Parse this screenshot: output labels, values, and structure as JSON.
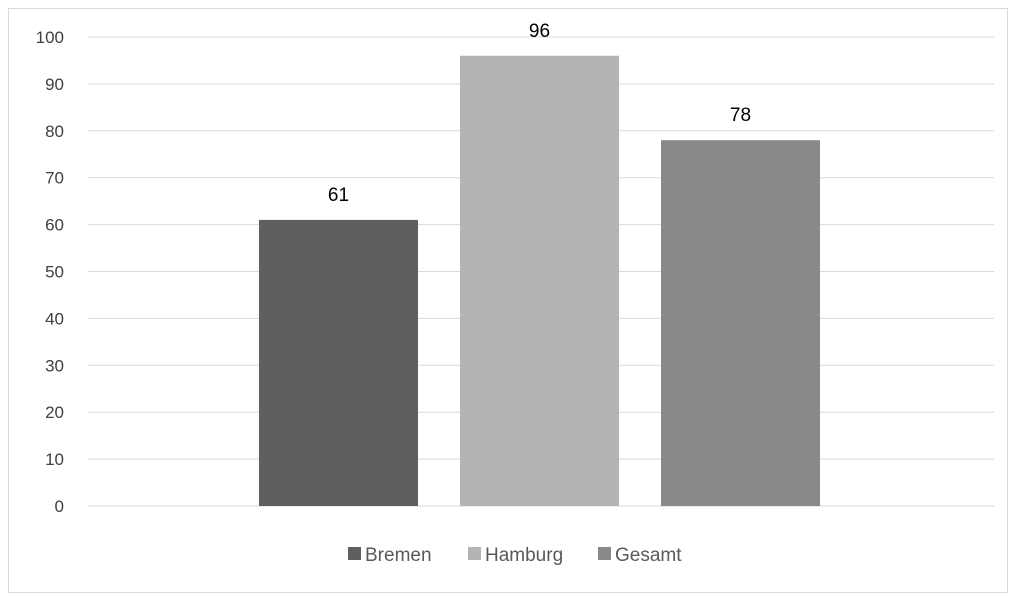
{
  "chart_data": {
    "type": "bar",
    "categories": [
      ""
    ],
    "series": [
      {
        "name": "Bremen",
        "values": [
          61
        ],
        "color": "#5f5f5f"
      },
      {
        "name": "Hamburg",
        "values": [
          96
        ],
        "color": "#b4b4b4"
      },
      {
        "name": "Gesamt",
        "values": [
          78
        ],
        "color": "#898989"
      }
    ],
    "data_labels": [
      "61",
      "96",
      "78"
    ],
    "title": "",
    "xlabel": "",
    "ylabel": "",
    "ylim": [
      0,
      100
    ],
    "yticks": [
      "0",
      "10",
      "20",
      "30",
      "40",
      "50",
      "60",
      "70",
      "80",
      "90",
      "100"
    ],
    "grid": true,
    "legend_position": "bottom",
    "gridline_color": "#d9d9d9"
  }
}
